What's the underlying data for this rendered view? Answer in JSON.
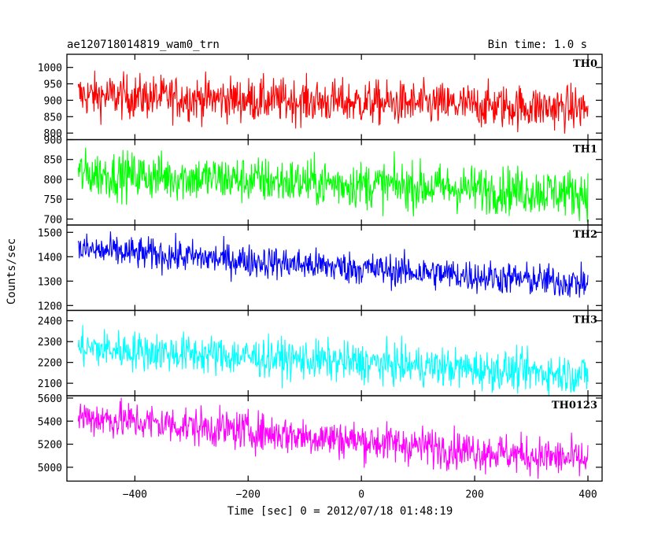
{
  "header": {
    "title": "ae120718014819_wam0_trn",
    "bin_time": "Bin time: 1.0 s"
  },
  "chart_data": {
    "type": "line",
    "title": "ae120718014819_wam0_trn",
    "xlabel": "Time [sec] 0 = 2012/07/18 01:48:19",
    "ylabel": "Counts/sec",
    "xlim": [
      -520,
      425
    ],
    "xticks": [
      "−400",
      "−200",
      "0",
      "200",
      "400"
    ],
    "xtick_values": [
      -400,
      -200,
      0,
      200,
      400
    ],
    "grid": false,
    "panels": [
      {
        "name": "TH0",
        "color": "#ff0000",
        "ylim": [
          780,
          1040
        ],
        "yticks": [
          "800",
          "850",
          "900",
          "950",
          "1000"
        ],
        "ytick_values": [
          800,
          850,
          900,
          950,
          1000
        ],
        "x_start": -500,
        "x_end": 400,
        "level_start": 915,
        "level_end": 875,
        "noise": 34
      },
      {
        "name": "TH1",
        "color": "#00ff00",
        "ylim": [
          685,
          900
        ],
        "yticks": [
          "700",
          "750",
          "800",
          "850",
          "900"
        ],
        "ytick_values": [
          700,
          750,
          800,
          850,
          900
        ],
        "x_start": -500,
        "x_end": 400,
        "level_start": 815,
        "level_end": 765,
        "noise": 30
      },
      {
        "name": "TH2",
        "color": "#0000ff",
        "ylim": [
          1180,
          1530
        ],
        "yticks": [
          "1200",
          "1300",
          "1400",
          "1500"
        ],
        "ytick_values": [
          1200,
          1300,
          1400,
          1500
        ],
        "x_start": -500,
        "x_end": 400,
        "level_start": 1430,
        "level_end": 1290,
        "noise": 34
      },
      {
        "name": "TH3",
        "color": "#00ffff",
        "ylim": [
          2040,
          2450
        ],
        "yticks": [
          "2100",
          "2200",
          "2300",
          "2400"
        ],
        "ytick_values": [
          2100,
          2200,
          2300,
          2400
        ],
        "x_start": -500,
        "x_end": 400,
        "level_start": 2270,
        "level_end": 2140,
        "noise": 48
      },
      {
        "name": "TH0123",
        "color": "#ff00ff",
        "ylim": [
          4880,
          5620
        ],
        "yticks": [
          "5000",
          "5200",
          "5400",
          "5600"
        ],
        "ytick_values": [
          5000,
          5200,
          5400,
          5600
        ],
        "x_start": -500,
        "x_end": 400,
        "level_start": 5440,
        "level_end": 5060,
        "noise": 85
      }
    ]
  }
}
